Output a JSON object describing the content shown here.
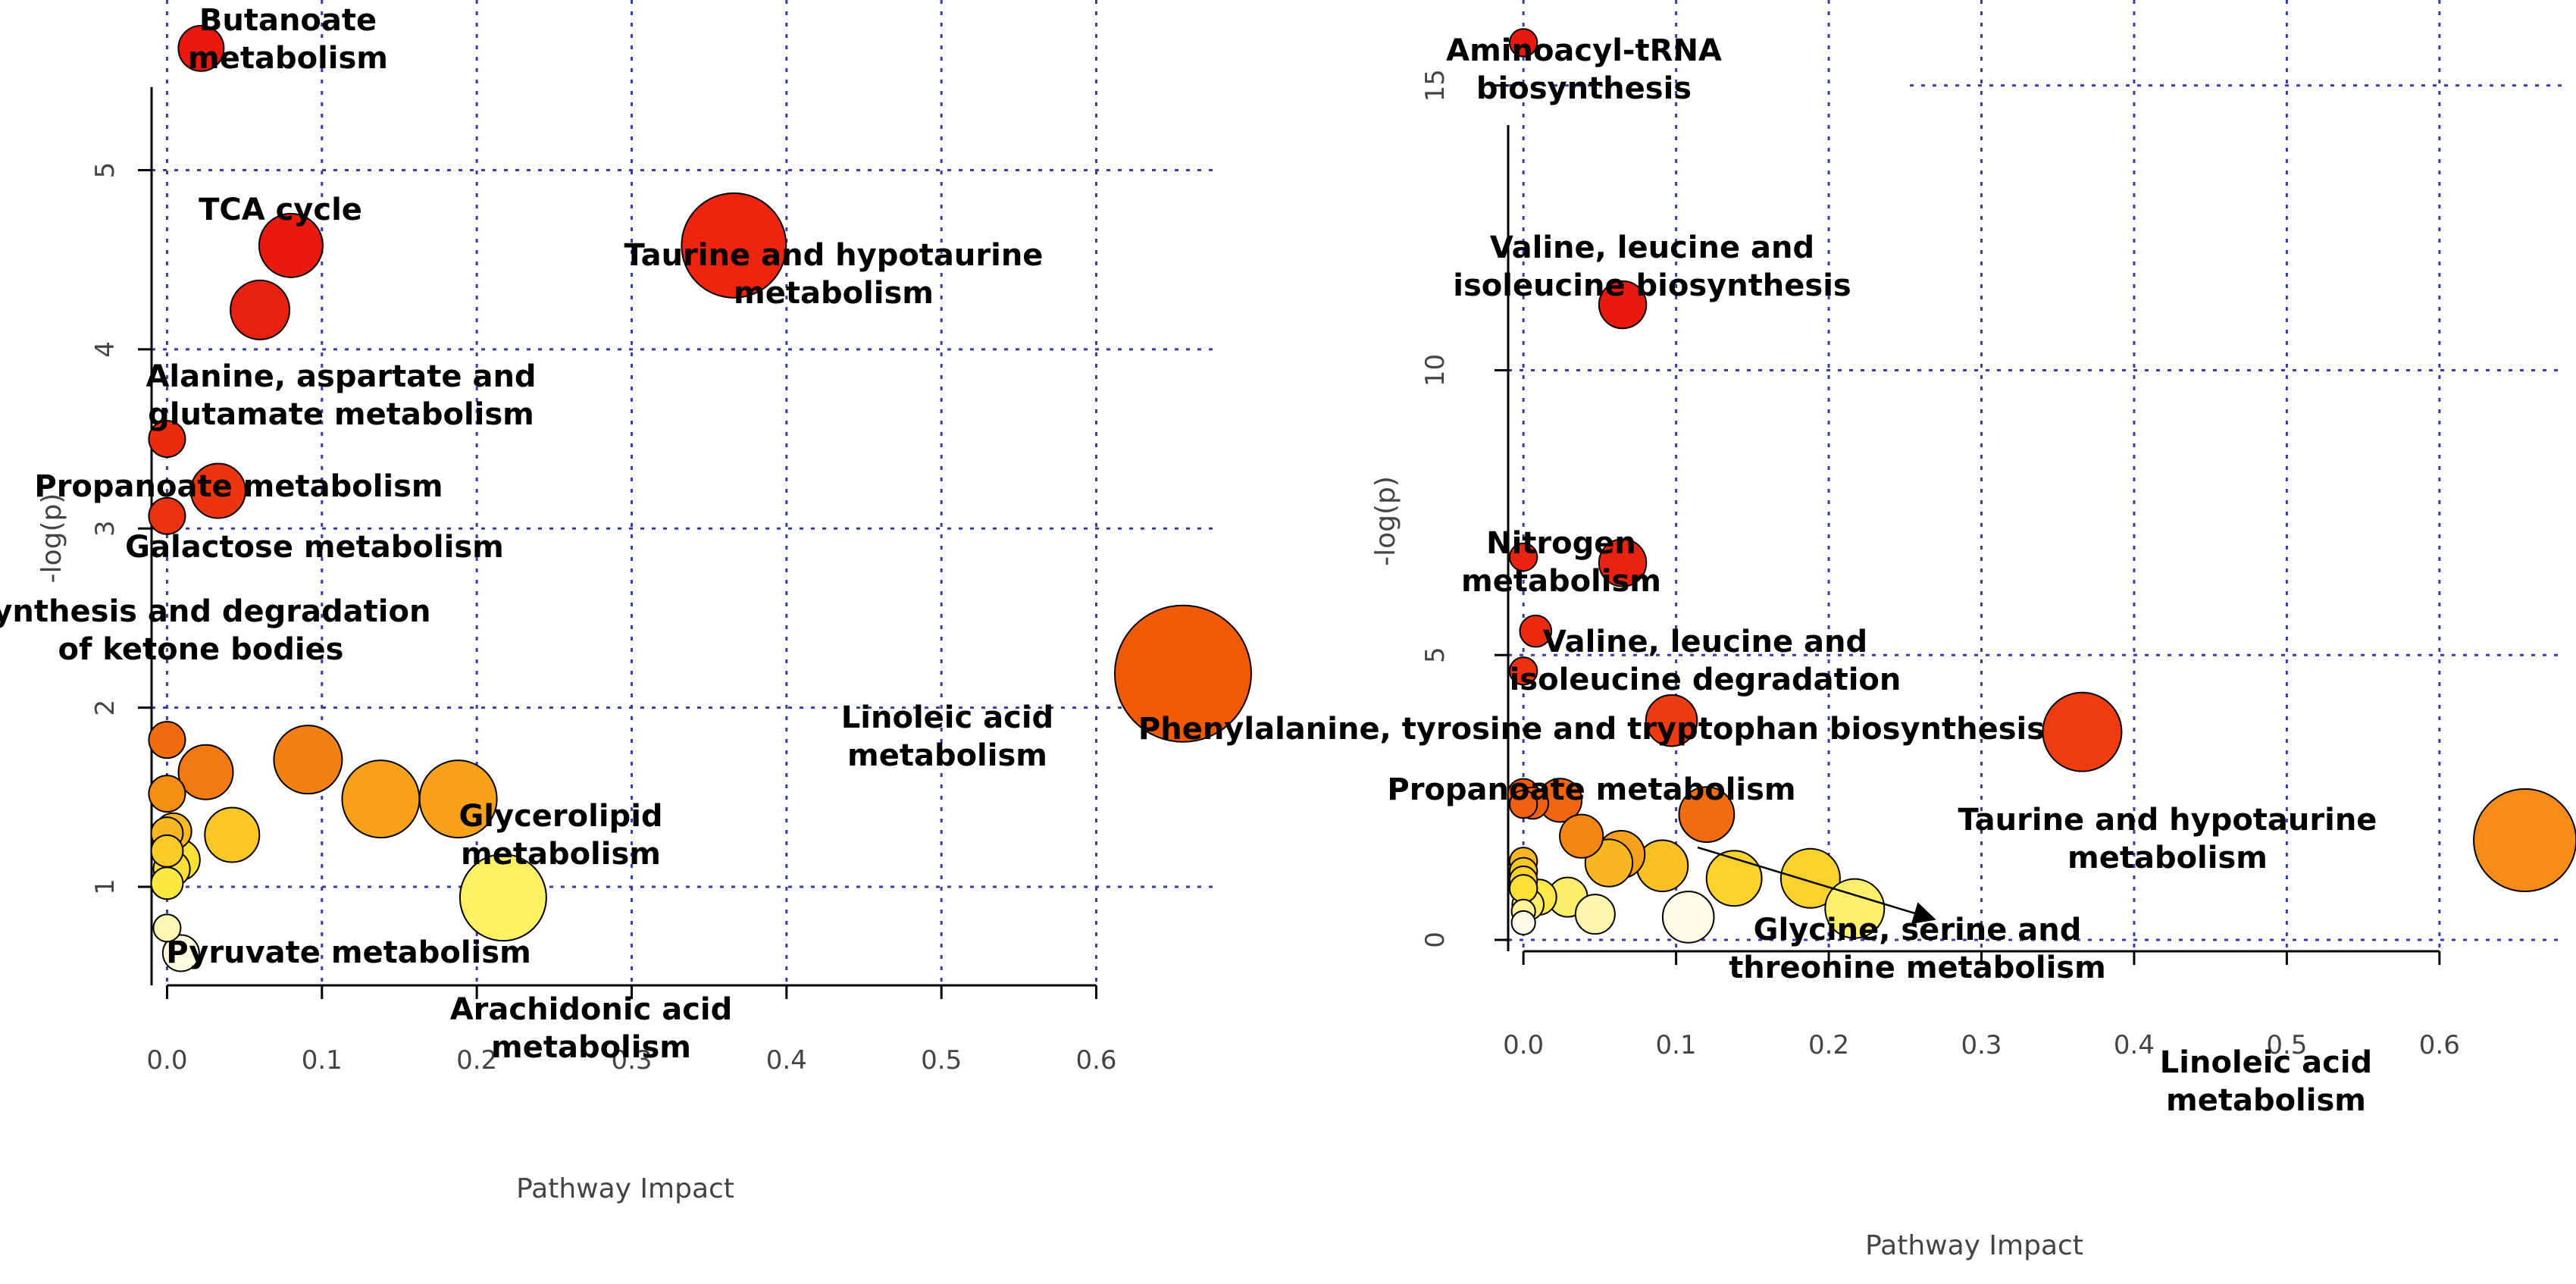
{
  "chart_data": [
    {
      "type": "scatter",
      "title": "",
      "xlabel": "Pathway Impact",
      "ylabel": "-log(p)",
      "xlim": [
        -0.01,
        0.68
      ],
      "ylim": [
        0.45,
        5.95
      ],
      "xticks": [
        0.0,
        0.1,
        0.2,
        0.3,
        0.4,
        0.5,
        0.6
      ],
      "xtick_labels": [
        "0.0",
        "0.1",
        "0.2",
        "0.3",
        "0.4",
        "0.5",
        "0.6"
      ],
      "yticks": [
        1,
        2,
        3,
        4,
        5
      ],
      "ytick_labels": [
        "1",
        "2",
        "3",
        "4",
        "5"
      ],
      "grid": true,
      "points": [
        {
          "x": 0.022,
          "y": 5.68,
          "size": 1.0,
          "color": "#e8190f"
        },
        {
          "x": 0.08,
          "y": 4.58,
          "size": 1.4,
          "color": "#e8190f"
        },
        {
          "x": 0.366,
          "y": 4.58,
          "size": 2.3,
          "color": "#ee2410"
        },
        {
          "x": 0.06,
          "y": 4.22,
          "size": 1.3,
          "color": "#e8200f"
        },
        {
          "x": 0.0,
          "y": 3.5,
          "size": 0.8,
          "color": "#ea2b10"
        },
        {
          "x": 0.033,
          "y": 3.21,
          "size": 1.2,
          "color": "#eb3510"
        },
        {
          "x": 0.0,
          "y": 3.07,
          "size": 0.8,
          "color": "#ea3210"
        },
        {
          "x": 0.656,
          "y": 2.19,
          "size": 3.0,
          "color": "#f05a07"
        },
        {
          "x": 0.0,
          "y": 1.82,
          "size": 0.8,
          "color": "#f06a10"
        },
        {
          "x": 0.025,
          "y": 1.64,
          "size": 1.2,
          "color": "#f37a12"
        },
        {
          "x": 0.091,
          "y": 1.71,
          "size": 1.5,
          "color": "#f38012"
        },
        {
          "x": 0.0,
          "y": 1.52,
          "size": 0.8,
          "color": "#f58e14"
        },
        {
          "x": 0.138,
          "y": 1.49,
          "size": 1.7,
          "color": "#f7a11a"
        },
        {
          "x": 0.188,
          "y": 1.49,
          "size": 1.7,
          "color": "#f7a11a"
        },
        {
          "x": 0.0,
          "y": 1.3,
          "size": 0.7,
          "color": "#f9b723"
        },
        {
          "x": 0.004,
          "y": 1.31,
          "size": 0.8,
          "color": "#f9b723"
        },
        {
          "x": 0.0,
          "y": 1.2,
          "size": 0.7,
          "color": "#fcc92a"
        },
        {
          "x": 0.042,
          "y": 1.29,
          "size": 1.2,
          "color": "#fbc726"
        },
        {
          "x": 0.008,
          "y": 1.15,
          "size": 0.9,
          "color": "#fde035"
        },
        {
          "x": 0.003,
          "y": 1.1,
          "size": 0.8,
          "color": "#fde035"
        },
        {
          "x": 0.0,
          "y": 1.02,
          "size": 0.7,
          "color": "#fbe841"
        },
        {
          "x": 0.217,
          "y": 0.94,
          "size": 1.9,
          "color": "#fef264"
        },
        {
          "x": 0.0,
          "y": 0.77,
          "size": 0.6,
          "color": "#fcf6b3"
        },
        {
          "x": 0.009,
          "y": 0.63,
          "size": 0.8,
          "color": "#fdfbe0"
        }
      ],
      "annotations": [
        {
          "lines": [
            "Butanoate",
            "metabolism"
          ]
        },
        {
          "lines": [
            "TCA cycle"
          ]
        },
        {
          "lines": [
            "Taurine and hypotaurine",
            "metabolism"
          ]
        },
        {
          "lines": [
            "Alanine, aspartate and",
            "glutamate metabolism"
          ]
        },
        {
          "lines": [
            "Propanoate metabolism"
          ]
        },
        {
          "lines": [
            "Galactose metabolism"
          ]
        },
        {
          "lines": [
            "Synthesis and degradation",
            "of ketone bodies"
          ]
        },
        {
          "lines": [
            "Linoleic acid",
            "metabolism"
          ]
        },
        {
          "lines": [
            "Glycerolipid",
            "metabolism"
          ]
        },
        {
          "lines": [
            "Pyruvate metabolism"
          ]
        },
        {
          "lines": [
            "Arachidonic acid",
            "metabolism"
          ]
        }
      ]
    },
    {
      "type": "scatter",
      "title": "",
      "xlabel": "Pathway Impact",
      "ylabel": "-log(p)",
      "xlim": [
        -0.01,
        0.68
      ],
      "ylim": [
        -0.2,
        16.5
      ],
      "xticks": [
        0.0,
        0.1,
        0.2,
        0.3,
        0.4,
        0.5,
        0.6
      ],
      "xtick_labels": [
        "0.0",
        "0.1",
        "0.2",
        "0.3",
        "0.4",
        "0.5",
        "0.6"
      ],
      "yticks": [
        0,
        5,
        10,
        15
      ],
      "ytick_labels": [
        "0",
        "5",
        "10",
        "15"
      ],
      "grid": true,
      "points": [
        {
          "x": 0.0,
          "y": 15.75,
          "size": 0.7,
          "color": "#e8190f"
        },
        {
          "x": 0.065,
          "y": 11.15,
          "size": 1.2,
          "color": "#e8190f"
        },
        {
          "x": 0.0,
          "y": 6.72,
          "size": 0.7,
          "color": "#ea2210"
        },
        {
          "x": 0.065,
          "y": 6.62,
          "size": 1.2,
          "color": "#ea2210"
        },
        {
          "x": 0.008,
          "y": 5.42,
          "size": 0.8,
          "color": "#eb2a10"
        },
        {
          "x": 0.0,
          "y": 4.72,
          "size": 0.7,
          "color": "#ec3010"
        },
        {
          "x": 0.097,
          "y": 3.85,
          "size": 1.3,
          "color": "#ee3a10"
        },
        {
          "x": 0.366,
          "y": 3.65,
          "size": 2.0,
          "color": "#ee3c10"
        },
        {
          "x": 0.0,
          "y": 2.55,
          "size": 0.8,
          "color": "#f05a10"
        },
        {
          "x": 0.0,
          "y": 2.38,
          "size": 0.7,
          "color": "#f06010"
        },
        {
          "x": 0.006,
          "y": 2.4,
          "size": 0.8,
          "color": "#f06010"
        },
        {
          "x": 0.024,
          "y": 2.45,
          "size": 1.1,
          "color": "#f06410"
        },
        {
          "x": 0.12,
          "y": 2.2,
          "size": 1.4,
          "color": "#f06c10"
        },
        {
          "x": 0.656,
          "y": 1.75,
          "size": 2.6,
          "color": "#f58c1a"
        },
        {
          "x": 0.038,
          "y": 1.82,
          "size": 1.1,
          "color": "#f38612"
        },
        {
          "x": 0.064,
          "y": 1.5,
          "size": 1.2,
          "color": "#f7a11a"
        },
        {
          "x": 0.056,
          "y": 1.35,
          "size": 1.2,
          "color": "#f9b723"
        },
        {
          "x": 0.091,
          "y": 1.3,
          "size": 1.3,
          "color": "#f9c028"
        },
        {
          "x": 0.0,
          "y": 1.38,
          "size": 0.7,
          "color": "#f9b723"
        },
        {
          "x": 0.0,
          "y": 1.2,
          "size": 0.7,
          "color": "#fbc726"
        },
        {
          "x": 0.0,
          "y": 1.05,
          "size": 0.7,
          "color": "#fcd22e"
        },
        {
          "x": 0.0,
          "y": 0.9,
          "size": 0.7,
          "color": "#fde035"
        },
        {
          "x": 0.138,
          "y": 1.08,
          "size": 1.4,
          "color": "#fbd12c"
        },
        {
          "x": 0.188,
          "y": 1.08,
          "size": 1.5,
          "color": "#fbd12c"
        },
        {
          "x": 0.01,
          "y": 0.75,
          "size": 0.9,
          "color": "#fde84a"
        },
        {
          "x": 0.003,
          "y": 0.62,
          "size": 0.8,
          "color": "#feee6c"
        },
        {
          "x": 0.029,
          "y": 0.75,
          "size": 1.0,
          "color": "#feee6c"
        },
        {
          "x": 0.217,
          "y": 0.55,
          "size": 1.5,
          "color": "#fef06c"
        },
        {
          "x": 0.0,
          "y": 0.5,
          "size": 0.6,
          "color": "#fef4a0"
        },
        {
          "x": 0.047,
          "y": 0.45,
          "size": 1.0,
          "color": "#fef5b0"
        },
        {
          "x": 0.108,
          "y": 0.4,
          "size": 1.3,
          "color": "#fefbe6"
        },
        {
          "x": 0.0,
          "y": 0.3,
          "size": 0.6,
          "color": "#fdfbe8"
        }
      ],
      "annotations": [
        {
          "lines": [
            "Aminoacyl-tRNA",
            "biosynthesis"
          ]
        },
        {
          "lines": [
            "Valine, leucine and",
            "isoleucine biosynthesis"
          ]
        },
        {
          "lines": [
            "Nitrogen",
            "metabolism"
          ]
        },
        {
          "lines": [
            "Valine, leucine and",
            "isoleucine degradation"
          ]
        },
        {
          "lines": [
            "Phenylalanine, tyrosine and tryptophan biosynthesis"
          ]
        },
        {
          "lines": [
            "Propanoate metabolism"
          ]
        },
        {
          "lines": [
            "Taurine and hypotaurine",
            "metabolism"
          ]
        },
        {
          "lines": [
            "Glycine, serine and",
            "threonine metabolism"
          ]
        },
        {
          "lines": [
            "Linoleic acid",
            "metabolism"
          ]
        }
      ]
    }
  ]
}
